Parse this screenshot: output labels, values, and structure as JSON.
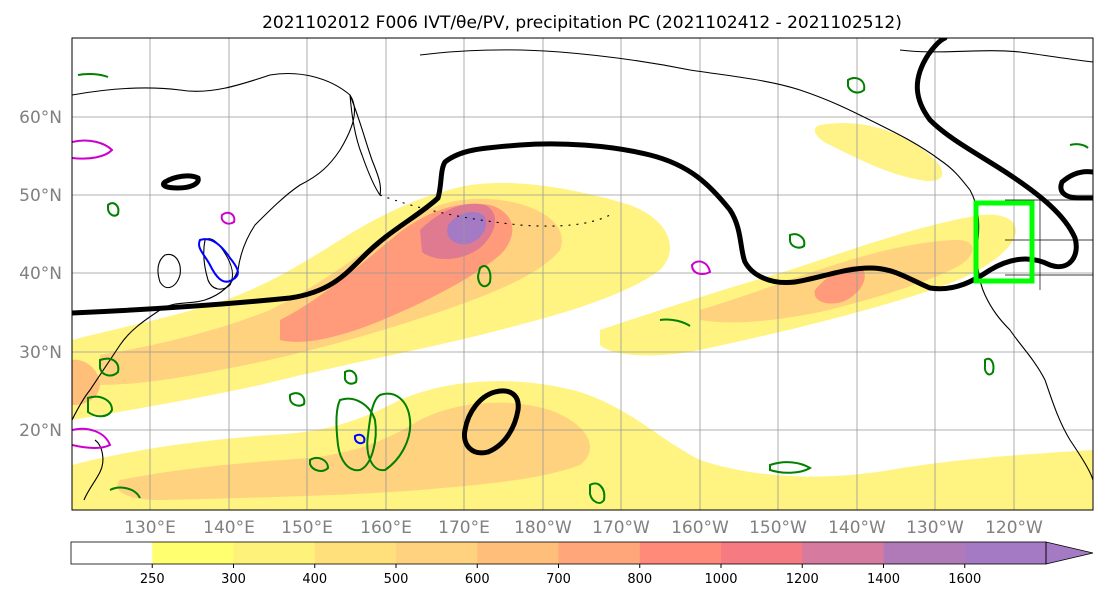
{
  "title": "2021102012 F006 IVT/θe/PV, precipitation PC (2021102412 - 2021102512)",
  "map": {
    "lat_labels": [
      "60°N",
      "50°N",
      "40°N",
      "30°N",
      "20°N"
    ],
    "lon_labels": [
      "130°E",
      "140°E",
      "150°E",
      "160°E",
      "170°E",
      "180°W",
      "170°W",
      "160°W",
      "150°W",
      "140°W",
      "130°W",
      "120°W"
    ],
    "colors": {
      "coastline": "#000000",
      "theta_e_contour": "#000000",
      "pv_positive_contour": "#008000",
      "pv_negative_contour": "#0000ff",
      "pv_other_contour": "#cc00cc",
      "highlight_box": "#00ff00",
      "gridline": "#999999"
    }
  },
  "colorbar": {
    "ticks": [
      "250",
      "300",
      "400",
      "500",
      "600",
      "700",
      "800",
      "1000",
      "1200",
      "1400",
      "1600"
    ],
    "colors": [
      "#ffffff",
      "#ffff70",
      "#fff27a",
      "#ffe07a",
      "#ffd27f",
      "#ffbe7a",
      "#ffa77a",
      "#ff8a7a",
      "#f57a82",
      "#d77aa0",
      "#b07ab8",
      "#a47ac4"
    ]
  }
}
